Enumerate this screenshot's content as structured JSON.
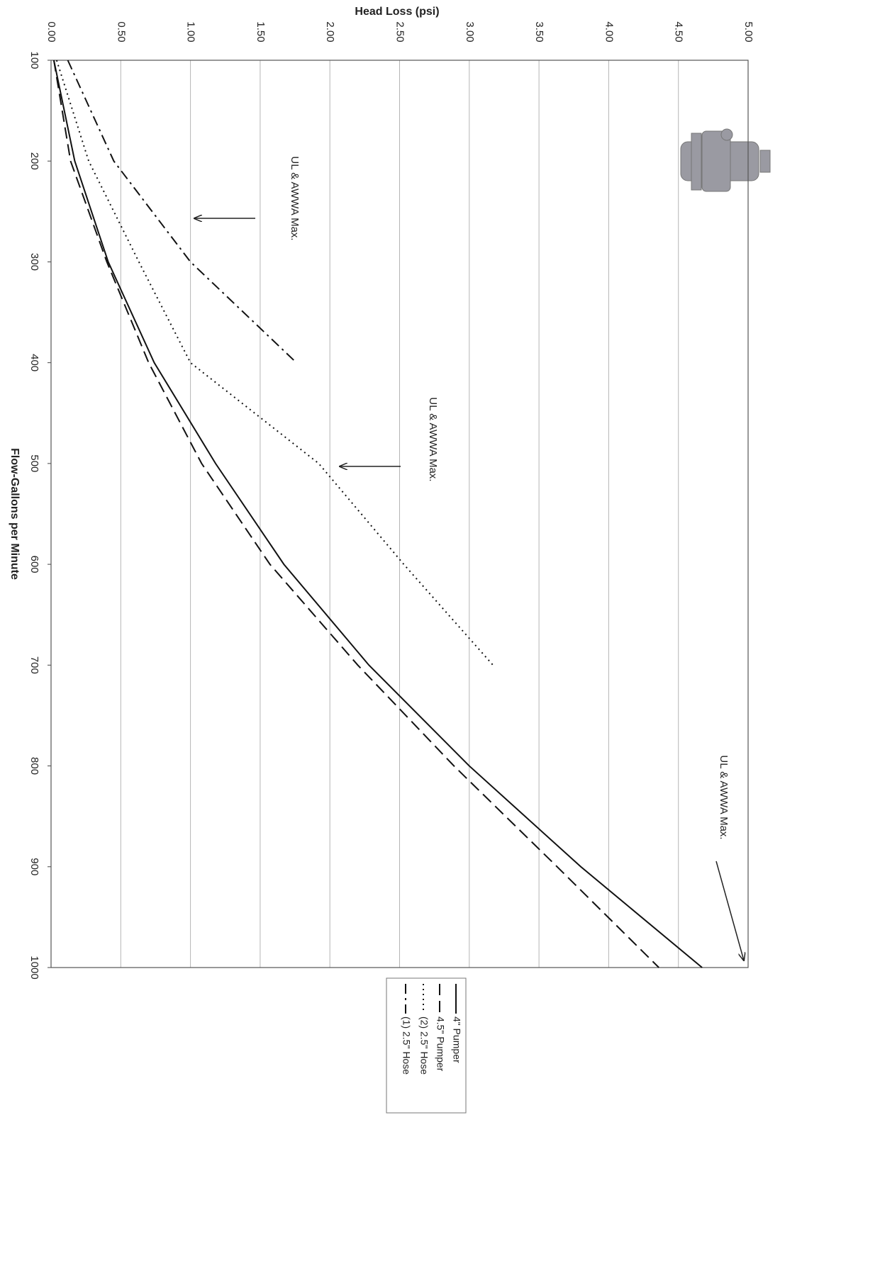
{
  "chart_data": {
    "type": "line",
    "title": "Head Loss (psi)",
    "x_label": "Flow-Gallons per Minute",
    "x": [
      100,
      200,
      300,
      400,
      500,
      600,
      700,
      800,
      900,
      1000
    ],
    "xlim": [
      100,
      1000
    ],
    "xticks": [
      100,
      200,
      300,
      400,
      500,
      600,
      700,
      800,
      900,
      1000
    ],
    "ylim": [
      0,
      5
    ],
    "yticks": [
      {
        "value": 0,
        "label": "0.00"
      },
      {
        "value": 0.5,
        "label": "0.50"
      },
      {
        "value": 1,
        "label": "1.00"
      },
      {
        "value": 1.5,
        "label": "1.50"
      },
      {
        "value": 2,
        "label": "2.00"
      },
      {
        "value": 2.5,
        "label": "2.50"
      },
      {
        "value": 3,
        "label": "3.00"
      },
      {
        "value": 3.5,
        "label": "3.50"
      },
      {
        "value": 4,
        "label": "4.00"
      },
      {
        "value": 4.5,
        "label": "4.50"
      },
      {
        "value": 5,
        "label": "5.00"
      }
    ],
    "grid": true,
    "series": [
      {
        "name": "4\" Pumper",
        "color": "#111111",
        "dash": "solid",
        "values": [
          0.02,
          0.17,
          0.41,
          0.74,
          1.18,
          1.67,
          2.28,
          3.0,
          3.8,
          4.67
        ]
      },
      {
        "name": "4.5\" Pumper",
        "color": "#111111",
        "dash": "dashed",
        "values": [
          0.02,
          0.14,
          0.4,
          0.7,
          1.08,
          1.57,
          2.2,
          2.89,
          3.63,
          4.36
        ]
      },
      {
        "name": "(2) 2.5\" Hose",
        "color": "#111111",
        "dash": "dotted",
        "values": [
          0.04,
          0.27,
          0.63,
          1.0,
          1.92,
          2.53,
          3.17,
          null,
          null,
          null
        ]
      },
      {
        "name": "(1) 2.5\" Hose",
        "color": "#111111",
        "dash": "dashdot",
        "values": [
          0.12,
          0.45,
          1.0,
          1.76,
          null,
          null,
          null,
          null,
          null,
          null
        ]
      }
    ],
    "annotations": [
      "UL & AWWA Max.",
      "UL & AWWA Max.",
      "UL & AWWA Max."
    ]
  }
}
